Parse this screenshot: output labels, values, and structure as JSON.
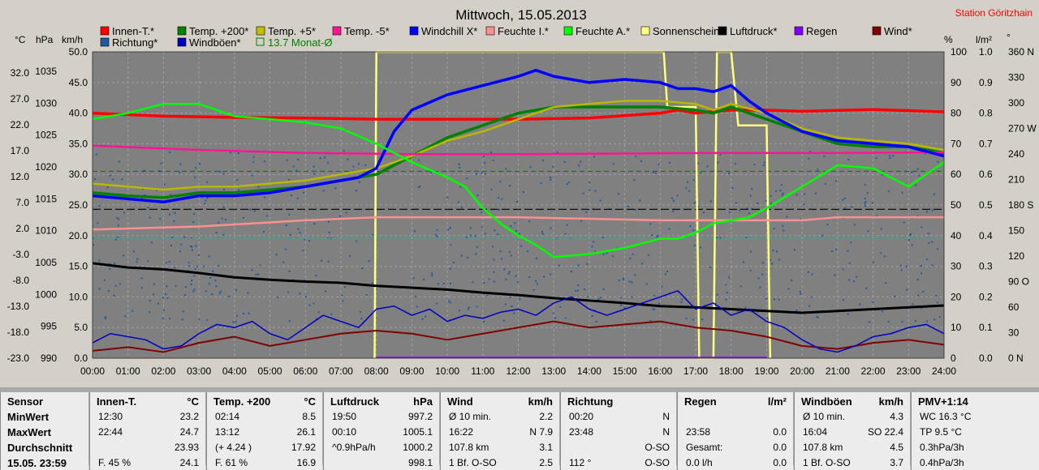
{
  "station": "Station Göritzhain",
  "chart_data": {
    "type": "line",
    "title": "Mittwoch, 15.05.2013",
    "legend_rows": [
      [
        {
          "name": "Innen-T.*",
          "color": "#ff0000"
        },
        {
          "name": "Temp. +200*",
          "color": "#008000"
        },
        {
          "name": "Temp. +5*",
          "color": "#c0c000"
        },
        {
          "name": "Temp. -5*",
          "color": "#ff1493"
        },
        {
          "name": "Windchill X*",
          "color": "#0000ff"
        },
        {
          "name": "Feuchte I.*",
          "color": "#ff9090"
        },
        {
          "name": "Feuchte A.*",
          "color": "#00ff00"
        },
        {
          "name": "Sonnenschein",
          "color": "#ffff80"
        },
        {
          "name": "Luftdruck*",
          "color": "#000000"
        },
        {
          "name": "Regen",
          "color": "#8000ff"
        },
        {
          "name": "Wind*",
          "color": "#800000"
        }
      ],
      [
        {
          "name": "Richtung*",
          "color": "#1e5aa0"
        },
        {
          "name": "Windböen*",
          "color": "#0000c0"
        },
        {
          "name": "13.7 Monat-Ø",
          "color": "#008000"
        }
      ]
    ],
    "axis_units": {
      "temp": "°C",
      "hpa": "hPa",
      "kmh": "km/h",
      "pct": "%",
      "rain": "l/m²",
      "deg": "°"
    },
    "x_ticks": [
      "00:00",
      "01:00",
      "02:00",
      "03:00",
      "04:00",
      "05:00",
      "06:00",
      "07:00",
      "08:00",
      "09:00",
      "10:00",
      "11:00",
      "12:00",
      "13:00",
      "14:00",
      "15:00",
      "16:00",
      "17:00",
      "18:00",
      "19:00",
      "20:00",
      "21:00",
      "22:00",
      "23:00",
      "24:00"
    ],
    "y_ticks_temp": [
      "32.0",
      "27.0",
      "22.0",
      "17.0",
      "12.0",
      "7.0",
      "2.0",
      "-3.0",
      "-8.0",
      "-13.0",
      "-18.0",
      "-23.0"
    ],
    "y_ticks_hpa": [
      "1035",
      "1030",
      "1025",
      "1020",
      "1015",
      "1010",
      "1005",
      "1000",
      "995",
      "990"
    ],
    "y_ticks_kmh": [
      "50.0",
      "45.0",
      "40.0",
      "35.0",
      "30.0",
      "25.0",
      "20.0",
      "15.0",
      "10.0",
      "5.0",
      "0.0"
    ],
    "y_ticks_pct": [
      "100",
      "90",
      "80",
      "70",
      "60",
      "50",
      "40",
      "30",
      "20",
      "10",
      "0"
    ],
    "y_ticks_rain": [
      "1.0",
      "0.9",
      "0.8",
      "0.7",
      "0.6",
      "0.5",
      "0.4",
      "0.3",
      "0.2",
      "0.1",
      "0.0"
    ],
    "y_ticks_deg": [
      "360 N",
      "330",
      "300",
      "270 W",
      "240",
      "210",
      "180 S",
      "150",
      "120",
      "90 O",
      "60",
      "30",
      "0 N"
    ],
    "ylim_kmh": [
      0,
      50
    ],
    "grid": true,
    "series": [
      {
        "name": "Innen-T.*",
        "color": "#ff0000",
        "width": 3.5,
        "x": [
          0,
          2,
          4,
          6,
          7,
          8,
          10,
          12,
          14,
          16,
          16.5,
          17,
          18,
          19,
          20,
          22,
          24
        ],
        "y": [
          40,
          39.5,
          39.3,
          39.2,
          39.1,
          39,
          39,
          39,
          39.2,
          40,
          40.5,
          40,
          40.5,
          40.5,
          40.3,
          40.6,
          40.2
        ]
      },
      {
        "name": "Temp. +200*",
        "color": "#008000",
        "width": 3.5,
        "x": [
          0,
          1,
          2,
          3,
          4,
          5,
          6,
          7,
          8,
          9,
          10,
          11,
          12,
          13,
          14,
          15,
          16,
          17,
          17.5,
          18,
          19,
          20,
          21,
          22,
          23,
          24
        ],
        "y": [
          27,
          26.5,
          26.2,
          27,
          27,
          27.5,
          28,
          29,
          30,
          33,
          36,
          38,
          40,
          41,
          41,
          41,
          41,
          40.5,
          40,
          41,
          39,
          37,
          35,
          34.5,
          34.5,
          33.5
        ]
      },
      {
        "name": "Temp. +5*",
        "color": "#b8b800",
        "width": 2.5,
        "x": [
          0,
          1,
          2,
          3,
          4,
          5,
          6,
          7,
          8,
          9,
          10,
          11,
          12,
          13,
          14,
          15,
          16,
          17,
          17.5,
          18,
          19,
          20,
          21,
          22,
          23,
          24
        ],
        "y": [
          28.5,
          28,
          27.5,
          28,
          28,
          28.5,
          29,
          30,
          31,
          33,
          35.5,
          37,
          39,
          41,
          41.5,
          42,
          42,
          41.5,
          40.5,
          41.5,
          40,
          37.5,
          36,
          35.5,
          35,
          34
        ]
      },
      {
        "name": "Temp. -5*",
        "color": "#ff1493",
        "width": 2.5,
        "x": [
          0,
          3,
          6,
          9,
          12,
          15,
          18,
          21,
          24
        ],
        "y": [
          34.7,
          34,
          33.5,
          33.3,
          33.3,
          33.4,
          33.5,
          33.5,
          33.6
        ]
      },
      {
        "name": "Windchill X*",
        "color": "#0000ff",
        "width": 3.5,
        "x": [
          0,
          1,
          2,
          3,
          4,
          5,
          6,
          7,
          7.5,
          8,
          8.5,
          9,
          10,
          11,
          12,
          12.5,
          13,
          14,
          15,
          16,
          16.5,
          17,
          17.5,
          18,
          18.5,
          19,
          20,
          21,
          22,
          23,
          24
        ],
        "y": [
          26.5,
          26,
          25.5,
          26.5,
          26.5,
          27,
          28,
          29,
          29.5,
          31,
          37,
          40.5,
          43,
          44.5,
          46,
          47,
          46,
          45,
          45.5,
          45,
          44,
          44,
          43.5,
          44.5,
          42,
          40,
          37,
          35.5,
          35,
          34.5,
          33
        ]
      },
      {
        "name": "Feuchte I.*",
        "color": "#ff9090",
        "width": 2.5,
        "x": [
          0,
          3,
          6,
          8,
          12,
          16,
          20,
          21,
          24
        ],
        "y": [
          21,
          21.5,
          22.5,
          23,
          23,
          22.5,
          22.5,
          23,
          23
        ]
      },
      {
        "name": "Feuchte A.*",
        "color": "#00ff00",
        "width": 2.5,
        "x": [
          0,
          1,
          2,
          3,
          3.5,
          4,
          5,
          6,
          7,
          8,
          9,
          10,
          10.5,
          11,
          11.5,
          12,
          12.5,
          13,
          14,
          15,
          16,
          16.5,
          17,
          17.5,
          18,
          18.5,
          19,
          20,
          21,
          22,
          23,
          24
        ],
        "y": [
          39,
          40,
          41.5,
          41.5,
          40.5,
          39.5,
          39,
          38.5,
          37.5,
          35,
          32,
          29.5,
          28,
          24.5,
          22,
          20,
          18.5,
          16.5,
          17,
          18,
          19.5,
          19.5,
          20.5,
          22,
          22.5,
          23,
          24.5,
          28,
          31.5,
          31,
          28,
          32
        ]
      },
      {
        "name": "Luftdruck*",
        "color": "#000000",
        "width": 3,
        "x": [
          0,
          1,
          2,
          3,
          4,
          5,
          6,
          7,
          8,
          9,
          10,
          11,
          12,
          13,
          14,
          15,
          16,
          17,
          18,
          19,
          20,
          21,
          22,
          23,
          24
        ],
        "y": [
          15.5,
          14.8,
          14.5,
          13.9,
          13.2,
          12.8,
          12.5,
          12.3,
          11.8,
          11.5,
          11.2,
          10.7,
          10.3,
          9.8,
          9.4,
          9,
          8.5,
          8.3,
          8,
          7.7,
          7.4,
          7.7,
          8,
          8.3,
          8.6
        ]
      },
      {
        "name": "Wind*",
        "color": "#800000",
        "width": 2,
        "x": [
          0,
          1,
          2,
          3,
          4,
          5,
          6,
          7,
          8,
          9,
          10,
          11,
          12,
          13,
          14,
          15,
          16,
          17,
          18,
          19,
          20,
          21,
          22,
          23,
          24
        ],
        "y": [
          1.2,
          1.8,
          1,
          2.5,
          3.5,
          2,
          3,
          4,
          4.5,
          4,
          3,
          4,
          5,
          6,
          5,
          5.5,
          6,
          5,
          4.5,
          3.5,
          2,
          1.5,
          2.5,
          3,
          2.2
        ]
      },
      {
        "name": "Windböen*",
        "color": "#0000c0",
        "width": 1.5,
        "x": [
          0,
          0.5,
          1,
          1.5,
          2,
          2.5,
          3,
          3.5,
          4,
          4.5,
          5,
          5.5,
          6,
          6.5,
          7,
          7.5,
          8,
          8.5,
          9,
          9.5,
          10,
          10.5,
          11,
          11.5,
          12,
          12.5,
          13,
          13.5,
          14,
          14.5,
          15,
          15.5,
          16,
          16.5,
          17,
          17.5,
          18,
          18.5,
          19,
          19.5,
          20,
          20.5,
          21,
          21.5,
          22,
          22.5,
          23,
          23.5,
          24
        ],
        "y": [
          2.5,
          4,
          3.5,
          3,
          1.5,
          2,
          4,
          5.5,
          5,
          6,
          4,
          3,
          5,
          7,
          6,
          5,
          8,
          8.5,
          7,
          8,
          6,
          7,
          6.5,
          7.5,
          8,
          7,
          9,
          10,
          8,
          7,
          8,
          9,
          10,
          11,
          8,
          9,
          7,
          8,
          6,
          5,
          3,
          1.5,
          1,
          2,
          3.5,
          4,
          5,
          5.5,
          4
        ]
      }
    ],
    "sunshine": {
      "name": "Sonnenschein",
      "color": "#ffff80",
      "x": [
        7.95,
        8.0,
        16.1,
        16.2,
        17.0,
        17.1,
        17.5,
        17.6,
        18.0,
        18.2,
        19.0,
        19.1
      ],
      "y": [
        0,
        50,
        50,
        41,
        41,
        0,
        0,
        50,
        50,
        38,
        38,
        0
      ]
    },
    "h_lines": [
      {
        "y": 30.5,
        "color": "#008000",
        "dash": "6,4"
      },
      {
        "y": 24.3,
        "color": "#000000",
        "dash": "10,4"
      },
      {
        "y": 19.5,
        "color": "#40a0a0",
        "dash": "3,3"
      }
    ]
  },
  "stats": [
    {
      "name": "Sensor",
      "header": [
        "Sensor",
        ""
      ],
      "rows": [
        [
          "MinWert",
          ""
        ],
        [
          "MaxWert",
          ""
        ],
        [
          "Durchschnitt",
          ""
        ],
        [
          "15.05. 23:59",
          ""
        ]
      ],
      "first": true
    },
    {
      "header": [
        "Innen-T.",
        "°C"
      ],
      "rows": [
        [
          "12:30",
          "23.2"
        ],
        [
          "22:44",
          "24.7"
        ],
        [
          "",
          "23.93"
        ],
        [
          "F. 45 %",
          "24.1"
        ]
      ]
    },
    {
      "header": [
        "Temp. +200",
        "°C"
      ],
      "rows": [
        [
          "02:14",
          "8.5"
        ],
        [
          "13:12",
          "26.1"
        ],
        [
          "(+ 4.24 )",
          "17.92"
        ],
        [
          "F. 61 %",
          "16.9"
        ]
      ]
    },
    {
      "header": [
        "Luftdruck",
        "hPa"
      ],
      "rows": [
        [
          "19:50",
          "997.2"
        ],
        [
          "00:10",
          "1005.1"
        ],
        [
          "^0.9hPa/h",
          "1000.2"
        ],
        [
          "",
          "998.1"
        ]
      ]
    },
    {
      "header": [
        "Wind",
        "km/h"
      ],
      "rows": [
        [
          "Ø 10 min.",
          "2.2"
        ],
        [
          "16:22",
          "N 7.9"
        ],
        [
          "107.8 km",
          "3.1"
        ],
        [
          "1 Bf. O-SO",
          "2.5"
        ]
      ]
    },
    {
      "header": [
        "Richtung",
        ""
      ],
      "rows": [
        [
          "00:20",
          "N"
        ],
        [
          "23:48",
          "N"
        ],
        [
          "",
          "O-SO"
        ],
        [
          "112 °",
          "O-SO"
        ]
      ]
    },
    {
      "header": [
        "Regen",
        "l/m²"
      ],
      "rows": [
        [
          "",
          ""
        ],
        [
          "23:58",
          "0.0"
        ],
        [
          "Gesamt:",
          "0.0"
        ],
        [
          "0.0 l/h",
          "0.0"
        ]
      ]
    },
    {
      "header": [
        "Windböen",
        "km/h"
      ],
      "rows": [
        [
          "Ø 10 min.",
          "4.3"
        ],
        [
          "16:04",
          "SO 22.4"
        ],
        [
          "107.8 km",
          "4.5"
        ],
        [
          "1 Bf. O-SO",
          "3.7"
        ]
      ]
    },
    {
      "header": [
        "PMV+1:14",
        ""
      ],
      "rows": [
        [
          "WC 16.3 °C",
          ""
        ],
        [
          "TP 9.5 °C",
          ""
        ],
        [
          "0.3hPa/3h",
          ""
        ],
        [
          "0.4hPa/3h",
          ""
        ]
      ]
    }
  ]
}
